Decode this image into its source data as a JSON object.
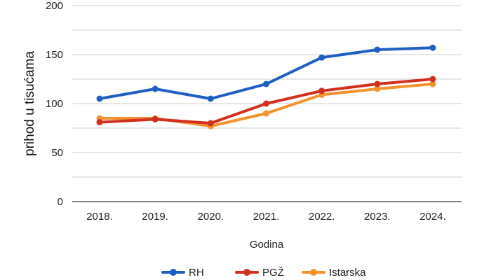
{
  "chart_data": {
    "type": "line",
    "title": "",
    "xlabel": "Godina",
    "ylabel": "prihod u tisućama",
    "ylim": [
      0,
      200
    ],
    "yticks": [
      "0",
      "50",
      "100",
      "150",
      "200"
    ],
    "categories": [
      "2018.",
      "2019.",
      "2020.",
      "2021.",
      "2022.",
      "2023.",
      "2024."
    ],
    "grid": true,
    "legend_position": "bottom",
    "series": [
      {
        "name": "RH",
        "color": "#1f5fc4",
        "values": [
          105,
          115,
          105,
          120,
          147,
          155,
          157
        ]
      },
      {
        "name": "PGŽ",
        "color": "#d2301f",
        "values": [
          81,
          84,
          80,
          100,
          113,
          120,
          125
        ]
      },
      {
        "name": "Istarska",
        "color": "#f5922e",
        "values": [
          85,
          85,
          77,
          90,
          109,
          115,
          120
        ]
      }
    ]
  }
}
